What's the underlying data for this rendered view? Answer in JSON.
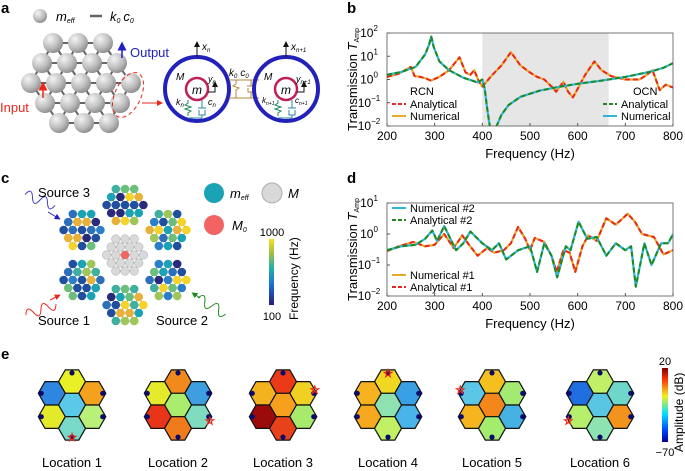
{
  "panels": {
    "a": "a",
    "b": "b",
    "c": "c",
    "d": "d",
    "e": "e"
  },
  "panel_a": {
    "legend_mass": "m",
    "legend_mass_sub": "eff",
    "legend_link": "k",
    "legend_link_sub": "0",
    "legend_link2": "c",
    "legend_link2_sub": "0",
    "output": "Output",
    "input": "Input",
    "cell_outer": "M",
    "cell_inner": "m",
    "x_n": "x",
    "x_n_sub": "n",
    "x_n1_sub": "n+1",
    "y_n": "y",
    "k_n": "k",
    "c_n": "c",
    "k0": "k",
    "c0": "c",
    "sub_0": "0"
  },
  "panel_c": {
    "source_1": "Source 1",
    "source_2": "Source 2",
    "source_3": "Source 3",
    "legend_meff": "m",
    "legend_meff_sub": "eff",
    "legend_M": "M",
    "legend_M0": "M",
    "legend_M0_sub": "0",
    "colorbar_max": "1000",
    "colorbar_min": "100",
    "colorbar_label": "Frequency (Hz)",
    "colors": {
      "meff": "#1aa3b5",
      "M": "#d9d9d9",
      "M0": "#f26464"
    }
  },
  "panel_e": {
    "locations": [
      "Location 1",
      "Location 2",
      "Location 3",
      "Location 4",
      "Location 5",
      "Location 6"
    ],
    "colorbar_max": "20",
    "colorbar_min": "−70",
    "colorbar_label": "Amplitude (dB)",
    "hex_colors": [
      [
        "#e9f025",
        "#2f86e0",
        "#f4a21e",
        "#5ac8e8",
        "#e3ea2a",
        "#b8f07a",
        "#78d9c8"
      ],
      [
        "#f08a1c",
        "#e5ea2a",
        "#3e9ee0",
        "#a9ec6e",
        "#e8351a",
        "#7fdcc1",
        "#f07b1c"
      ],
      [
        "#ea3a18",
        "#f2b31e",
        "#f0d022",
        "#f6a01e",
        "#9c0b0b",
        "#a8ea6c",
        "#e8421a"
      ],
      [
        "#f0d722",
        "#f6b31f",
        "#3aa0e6",
        "#8ee1b0",
        "#f6a81e",
        "#49b4ea",
        "#c2f064"
      ],
      [
        "#f4c020",
        "#5cc6e6",
        "#a4ea72",
        "#f4861c",
        "#f6b51f",
        "#46b2e2",
        "#a3ec6e"
      ],
      [
        "#bff067",
        "#1f6fe0",
        "#6ed7c9",
        "#58c5e2",
        "#b6ef6c",
        "#f1931d",
        "#8ee4b0"
      ]
    ]
  },
  "chart_data": [
    {
      "id": "b",
      "type": "line",
      "xlabel": "Frequency (Hz)",
      "ylabel": "Transmission T",
      "ylabel_sub": "Amp",
      "xlim": [
        200,
        800
      ],
      "ylim_log10": [
        -2,
        2
      ],
      "xticks": [
        "200",
        "300",
        "400",
        "500",
        "600",
        "700",
        "800"
      ],
      "ytick_base": "10",
      "ytick_exps": [
        "2",
        "1",
        "0",
        "−1",
        "−2"
      ],
      "shaded_band": [
        400,
        665
      ],
      "legend_groups": [
        {
          "title": "RCN",
          "position": "left",
          "entries": [
            {
              "name": "Analytical",
              "color": "#e8281c",
              "dash": true
            },
            {
              "name": "Numerical",
              "color": "#e9a82a",
              "dash": false
            }
          ]
        },
        {
          "title": "OCN",
          "position": "right",
          "entries": [
            {
              "name": "Analytical",
              "color": "#1e8a1e",
              "dash": true
            },
            {
              "name": "Numerical",
              "color": "#2fb4d6",
              "dash": false
            }
          ]
        }
      ],
      "series": [
        {
          "name": "RCN",
          "solid_color": "#e9a82a",
          "dash_color": "#e8281c",
          "x": [
            200,
            225,
            250,
            258,
            270,
            282,
            292,
            310,
            330,
            352,
            365,
            375,
            383,
            392,
            400,
            420,
            440,
            460,
            480,
            500,
            515,
            530,
            545,
            555,
            570,
            580,
            590,
            600,
            615,
            635,
            650,
            670,
            700,
            730,
            745,
            757,
            765,
            772,
            785,
            800
          ],
          "y": [
            1.3,
            1.8,
            3.5,
            1.4,
            1.3,
            1.1,
            0.9,
            1.3,
            2.5,
            9,
            2,
            1.6,
            2.5,
            0.9,
            0.5,
            1.5,
            4,
            15,
            4,
            2,
            1.3,
            1.0,
            0.5,
            0.3,
            0.8,
            0.3,
            0.17,
            0.4,
            1.5,
            6,
            2.5,
            1.4,
            1.0,
            1.0,
            1.6,
            2.5,
            0.9,
            0.35,
            0.6,
            0.45
          ]
        },
        {
          "name": "OCN",
          "solid_color": "#2fb4d6",
          "dash_color": "#1e8a1e",
          "x": [
            200,
            230,
            260,
            280,
            288,
            293,
            298,
            310,
            330,
            360,
            390,
            400,
            405,
            410,
            415,
            420,
            425,
            430,
            440,
            455,
            480,
            520,
            560,
            600,
            650,
            700,
            750,
            780,
            800
          ],
          "y": [
            1.6,
            2.1,
            3.5,
            12,
            30,
            70,
            25,
            6,
            2.5,
            1.2,
            0.75,
            1.0,
            0.4,
            0.06,
            0.012,
            0.004,
            0.004,
            0.01,
            0.03,
            0.08,
            0.18,
            0.33,
            0.48,
            0.65,
            0.9,
            1.3,
            2.1,
            3.2,
            5
          ]
        }
      ]
    },
    {
      "id": "d",
      "type": "line",
      "xlabel": "Frequency (Hz)",
      "ylabel": "Transmission T",
      "ylabel_sub": "Amp",
      "xlim": [
        200,
        800
      ],
      "ylim_log10": [
        -2,
        1
      ],
      "xticks": [
        "200",
        "300",
        "400",
        "500",
        "600",
        "700",
        "800"
      ],
      "ytick_base": "10",
      "ytick_exps": [
        "1",
        "0",
        "−1",
        "−2"
      ],
      "legend_groups": [
        {
          "title": "",
          "position": "top-left",
          "entries": [
            {
              "name": "Numerical #2",
              "color": "#2fb4d6",
              "dash": false
            },
            {
              "name": "Analytical #2",
              "color": "#1e8a1e",
              "dash": true
            }
          ]
        },
        {
          "title": "",
          "position": "bottom-left",
          "entries": [
            {
              "name": "Numerical #1",
              "color": "#e9a82a",
              "dash": false
            },
            {
              "name": "Analytical #1",
              "color": "#e8281c",
              "dash": true
            }
          ]
        }
      ],
      "series": [
        {
          "name": "#1",
          "solid_color": "#e9a82a",
          "dash_color": "#e8281c",
          "x": [
            200,
            225,
            255,
            280,
            300,
            320,
            340,
            358,
            372,
            390,
            410,
            425,
            445,
            460,
            475,
            490,
            500,
            510,
            530,
            545,
            556,
            570,
            583,
            595,
            610,
            622,
            640,
            660,
            680,
            705,
            720,
            735,
            760,
            780,
            800
          ],
          "y": [
            0.28,
            0.4,
            0.55,
            0.4,
            0.45,
            1.0,
            0.35,
            0.9,
            0.45,
            0.2,
            0.35,
            0.25,
            0.3,
            0.5,
            1.7,
            0.7,
            0.3,
            0.75,
            0.55,
            0.2,
            0.06,
            0.3,
            0.25,
            0.06,
            0.4,
            0.9,
            0.6,
            3.2,
            2,
            4.5,
            2.5,
            1.0,
            0.8,
            0.22,
            0.3
          ]
        },
        {
          "name": "#2",
          "solid_color": "#2fb4d6",
          "dash_color": "#1e8a1e",
          "x": [
            200,
            230,
            260,
            280,
            295,
            305,
            320,
            345,
            360,
            375,
            400,
            420,
            435,
            450,
            475,
            500,
            515,
            530,
            545,
            557,
            575,
            585,
            602,
            620,
            640,
            660,
            680,
            700,
            712,
            722,
            740,
            755,
            775,
            790,
            800
          ],
          "y": [
            0.3,
            0.4,
            0.45,
            0.7,
            1.3,
            0.6,
            1.8,
            0.3,
            0.5,
            1.2,
            0.5,
            0.3,
            0.5,
            0.15,
            0.3,
            0.4,
            0.06,
            0.5,
            0.2,
            0.04,
            0.4,
            0.3,
            2.5,
            0.7,
            0.8,
            0.2,
            0.5,
            0.3,
            0.4,
            0.02,
            0.5,
            0.1,
            0.5,
            0.5,
            1.0
          ]
        }
      ]
    }
  ]
}
